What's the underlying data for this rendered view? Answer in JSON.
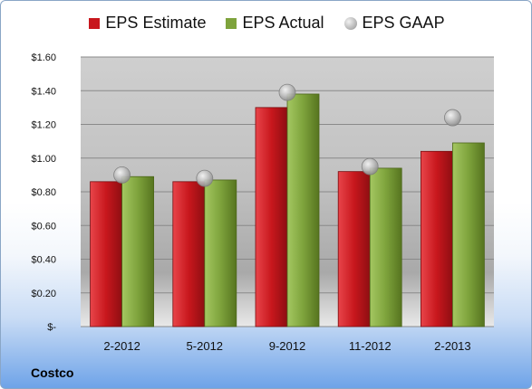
{
  "company": "Costco",
  "colors": {
    "estimate": "#c8171d",
    "actual": "#7ea33c",
    "gaap": "#b8b8b8"
  },
  "chart_data": {
    "type": "bar",
    "categories": [
      "2-2012",
      "5-2012",
      "9-2012",
      "11-2012",
      "2-2013"
    ],
    "series": [
      {
        "name": "EPS Estimate",
        "type": "bar",
        "values": [
          0.86,
          0.86,
          1.3,
          0.92,
          1.04
        ]
      },
      {
        "name": "EPS Actual",
        "type": "bar",
        "values": [
          0.89,
          0.87,
          1.38,
          0.94,
          1.09
        ]
      },
      {
        "name": "EPS GAAP",
        "type": "scatter",
        "values": [
          0.9,
          0.88,
          1.39,
          0.95,
          1.24
        ]
      }
    ],
    "ylim": [
      0,
      1.6
    ],
    "yticks": [
      0,
      0.2,
      0.4,
      0.6,
      0.8,
      1.0,
      1.2,
      1.4,
      1.6
    ],
    "ytick_labels": [
      "$-",
      "$0.20",
      "$0.40",
      "$0.60",
      "$0.80",
      "$1.00",
      "$1.20",
      "$1.40",
      "$1.60"
    ],
    "legend_position": "top",
    "grid": true
  }
}
